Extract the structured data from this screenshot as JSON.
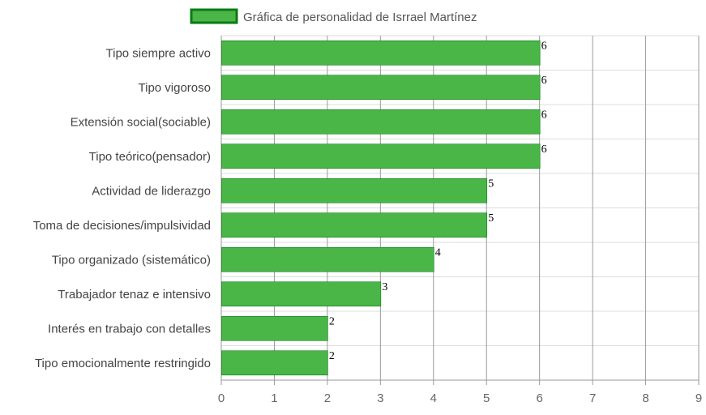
{
  "chart_data": {
    "type": "bar",
    "orientation": "horizontal",
    "categories": [
      "Tipo siempre activo",
      "Tipo vigoroso",
      "Extensión social(sociable)",
      "Tipo teórico(pensador)",
      "Actividad de liderazgo",
      "Toma de decisiones/impulsividad",
      "Tipo organizado (sistemático)",
      "Trabajador tenaz e intensivo",
      "Interés en trabajo con detalles",
      "Tipo emocionalmente restringido"
    ],
    "series": [
      {
        "name": "Gráfica de personalidad de Isrrael Martínez",
        "values": [
          6,
          6,
          6,
          6,
          5,
          5,
          4,
          3,
          2,
          2
        ],
        "color": "#4bb648",
        "border_color": "#0a7a14"
      }
    ],
    "xlim": [
      0,
      9
    ],
    "xticks": [
      "0",
      "1",
      "2",
      "3",
      "4",
      "5",
      "6",
      "7",
      "8",
      "9"
    ],
    "grid": true,
    "legend": "top-center",
    "data_labels": true,
    "grid_color": "#dddddd",
    "axis_color": "#999999"
  }
}
